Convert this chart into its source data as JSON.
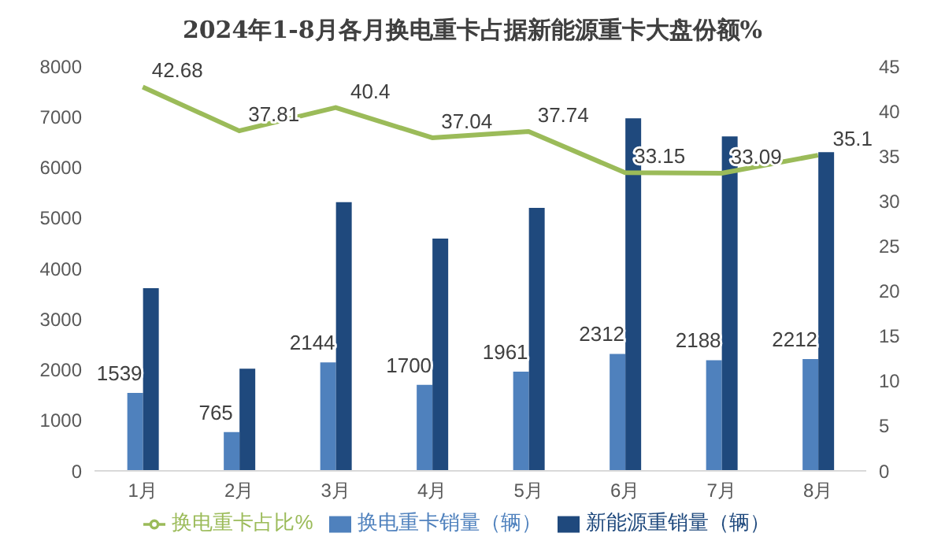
{
  "chart_data": {
    "type": "bar",
    "title": "2024年1-8月各月换电重卡占据新能源重卡大盘份额%",
    "categories": [
      "1月",
      "2月",
      "3月",
      "4月",
      "5月",
      "6月",
      "7月",
      "8月"
    ],
    "series": [
      {
        "name": "换电重卡销量（辆）",
        "color": "#4f81bd",
        "values": [
          1539,
          765,
          2144,
          1700,
          1961,
          2312,
          2188,
          2212
        ],
        "value_labels": [
          "1539",
          "765",
          "2144",
          "1700",
          "1961",
          "2312",
          "2188",
          "2212"
        ]
      },
      {
        "name": "新能源重销量（辆）",
        "color": "#1f497d",
        "values": [
          3610,
          2020,
          5310,
          4590,
          5200,
          6970,
          6610,
          6300
        ]
      },
      {
        "name": "换电重卡占比%",
        "type": "line",
        "axis": "y2",
        "color": "#9bbb59",
        "values": [
          42.68,
          37.81,
          40.4,
          37.04,
          37.74,
          33.15,
          33.09,
          35.1
        ],
        "value_labels": [
          "42.68",
          "37.81",
          "40.4",
          "37.04",
          "37.74",
          "33.15",
          "33.09",
          "35.1"
        ]
      }
    ],
    "ylim": [
      0,
      8000
    ],
    "yticks": [
      0,
      1000,
      2000,
      3000,
      4000,
      5000,
      6000,
      7000,
      8000
    ],
    "y2lim": [
      0,
      45
    ],
    "y2ticks": [
      0,
      5,
      10,
      15,
      20,
      25,
      30,
      35,
      40,
      45
    ],
    "grid": false,
    "legend": "bottom",
    "marker": "none"
  }
}
